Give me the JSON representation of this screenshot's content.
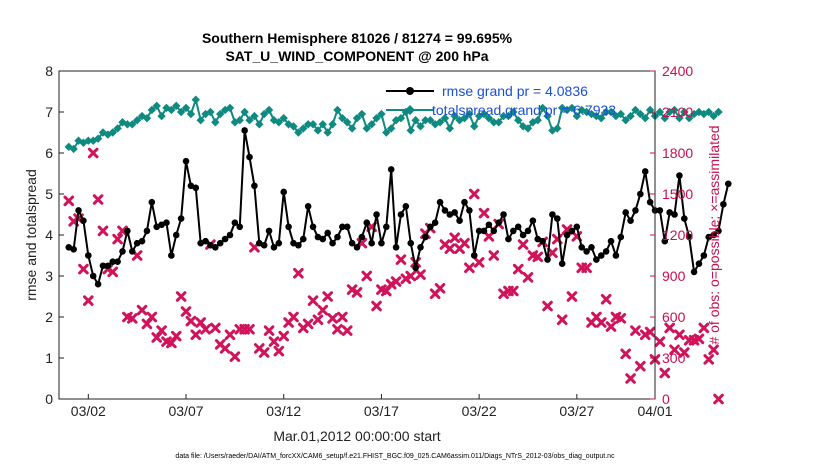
{
  "chart_data": {
    "type": "line",
    "title": "Southern Hemisphere 81026 / 81274 = 99.695%",
    "subtitle": "SAT_U_WIND_COMPONENT @ 200 hPa",
    "xlabel": "Mar.01,2012 00:00:00 start",
    "ylabel": "rmse and totalspread",
    "ylabel_right": "# of obs: o=possible; ×=assimilated",
    "footnote": "data file: /Users/raeder/DAI/ATM_forcXX/CAM6_setup/f.e21.FHIST_BGC.f09_025.CAM6assim.011/Diags_NTrS_2012-03/obs_diag_output.nc",
    "x_range": [
      0.5,
      31.0
    ],
    "ylim": [
      0,
      8
    ],
    "ylim_right": [
      0,
      2400
    ],
    "x_ticks": [
      {
        "value": 2,
        "label": "03/02"
      },
      {
        "value": 7,
        "label": "03/07"
      },
      {
        "value": 12,
        "label": "03/12"
      },
      {
        "value": 17,
        "label": "03/17"
      },
      {
        "value": 22,
        "label": "03/22"
      },
      {
        "value": 27,
        "label": "03/27"
      },
      {
        "value": 31,
        "label": "04/01"
      }
    ],
    "y_ticks": [
      0,
      1,
      2,
      3,
      4,
      5,
      6,
      7,
      8
    ],
    "y_ticks_right": [
      0,
      300,
      600,
      900,
      1200,
      1500,
      1800,
      2100,
      2400
    ],
    "grid": false,
    "legend_position": "top-right",
    "colors": {
      "rmse": "#000000",
      "totalspread": "#0f8a80",
      "obs": "#d0135a"
    },
    "series": [
      {
        "name": "rmse grand pr = 4.0836",
        "axis": "left",
        "marker": "filled-circle",
        "x_start": 1.0,
        "x_step": 0.25,
        "values": [
          3.7,
          3.65,
          4.6,
          4.35,
          3.5,
          3.0,
          2.8,
          3.25,
          3.25,
          3.35,
          3.35,
          3.6,
          4.1,
          3.6,
          3.8,
          3.85,
          4.1,
          4.8,
          4.2,
          4.25,
          4.3,
          3.5,
          4.0,
          4.4,
          5.8,
          5.2,
          5.15,
          3.8,
          3.85,
          3.75,
          3.7,
          3.8,
          3.9,
          4.0,
          4.3,
          4.2,
          6.55,
          5.9,
          5.2,
          3.8,
          3.75,
          4.1,
          3.7,
          3.8,
          5.05,
          4.2,
          3.8,
          3.75,
          3.9,
          4.7,
          4.2,
          3.95,
          3.9,
          4.05,
          3.8,
          3.95,
          4.2,
          4.2,
          3.8,
          3.7,
          3.95,
          4.3,
          3.8,
          4.5,
          3.8,
          4.2,
          5.6,
          3.7,
          4.5,
          4.7,
          3.8,
          3.2,
          3.7,
          3.95,
          4.2,
          4.3,
          4.8,
          4.6,
          4.5,
          4.55,
          4.35,
          4.8,
          4.6,
          3.5,
          4.1,
          4.1,
          4.25,
          4.1,
          4.3,
          4.5,
          3.9,
          4.1,
          4.2,
          4.0,
          4.1,
          4.35,
          3.9,
          3.85,
          3.4,
          4.5,
          4.4,
          3.3,
          4.0,
          4.1,
          4.2,
          3.7,
          3.6,
          3.7,
          3.4,
          3.5,
          3.6,
          3.85,
          3.5,
          3.95,
          4.55,
          4.35,
          4.6,
          5.0,
          5.55,
          4.8,
          4.6,
          4.6,
          3.85,
          4.55,
          4.5,
          5.45,
          4.4,
          3.95,
          3.1,
          3.3,
          3.5,
          3.95,
          4.0,
          4.1,
          4.75,
          5.25
        ]
      },
      {
        "name": "totalspread grand pr = 6.7933",
        "axis": "left",
        "marker": "filled-diamond",
        "x_start": 1.0,
        "x_step": 0.25,
        "values": [
          6.15,
          6.1,
          6.3,
          6.25,
          6.3,
          6.3,
          6.35,
          6.5,
          6.45,
          6.5,
          6.6,
          6.75,
          6.7,
          6.7,
          6.8,
          6.9,
          6.85,
          7.05,
          7.15,
          6.9,
          7.1,
          7.05,
          7.15,
          7.0,
          7.1,
          6.95,
          7.3,
          6.8,
          6.95,
          7.0,
          6.75,
          6.95,
          7.05,
          7.1,
          6.75,
          6.8,
          7.0,
          6.8,
          6.9,
          6.7,
          6.95,
          7.05,
          6.8,
          6.75,
          6.85,
          6.7,
          6.65,
          6.5,
          6.6,
          6.7,
          6.7,
          6.55,
          6.7,
          6.5,
          6.7,
          7.05,
          6.85,
          6.75,
          6.6,
          6.85,
          6.95,
          6.6,
          6.7,
          6.85,
          6.95,
          6.5,
          6.6,
          6.8,
          6.85,
          7.0,
          6.55,
          6.8,
          6.65,
          6.8,
          6.8,
          6.7,
          6.75,
          6.85,
          6.6,
          6.9,
          6.8,
          6.85,
          6.95,
          6.65,
          6.9,
          6.95,
          6.85,
          6.75,
          6.75,
          6.9,
          6.9,
          7.0,
          6.8,
          6.65,
          6.6,
          6.75,
          6.8,
          7.1,
          6.9,
          6.55,
          6.6,
          7.1,
          7.05,
          7.1,
          6.9,
          7.05,
          7.0,
          6.95,
          6.9,
          6.85,
          7.0,
          7.0,
          6.9,
          6.95,
          6.8,
          6.9,
          7.05,
          6.95,
          6.85,
          7.05,
          6.9,
          7.0,
          6.85,
          7.0,
          7.05,
          6.85,
          7.0,
          6.85,
          6.95,
          7.0,
          6.95,
          7.0,
          6.9,
          7.0
        ]
      },
      {
        "name": "",
        "axis": "right",
        "marker": "x",
        "x_start": 1.0,
        "x_step": 0.25,
        "values": [
          1450,
          1300,
          1320,
          950,
          720,
          1800,
          1460,
          1230,
          950,
          930,
          1170,
          1230,
          600,
          590,
          1050,
          650,
          550,
          600,
          450,
          500,
          420,
          410,
          460,
          750,
          640,
          570,
          470,
          560,
          510,
          1130,
          520,
          400,
          370,
          470,
          310,
          510,
          510,
          510,
          1110,
          370,
          340,
          500,
          420,
          350,
          460,
          560,
          600,
          920,
          520,
          550,
          720,
          580,
          650,
          750,
          590,
          510,
          600,
          500,
          800,
          780,
          1140,
          900,
          1260,
          680,
          800,
          790,
          840,
          860,
          1020,
          880,
          900,
          1000,
          910,
          1210,
          1250,
          770,
          810,
          1130,
          1100,
          1180,
          1100,
          1140,
          960,
          1500,
          1000,
          1360,
          1190,
          1050,
          1280,
          770,
          790,
          790,
          950,
          1130,
          890,
          1050,
          1040,
          1150,
          680,
          1070,
          1170,
          580,
          1240,
          750,
          1190,
          960,
          960,
          560,
          600,
          560,
          730,
          530,
          600,
          590,
          330,
          150,
          500,
          240,
          470,
          490,
          290,
          420,
          190,
          520,
          360,
          470,
          340,
          430,
          430,
          440,
          520,
          290,
          360,
          0
        ]
      }
    ]
  }
}
